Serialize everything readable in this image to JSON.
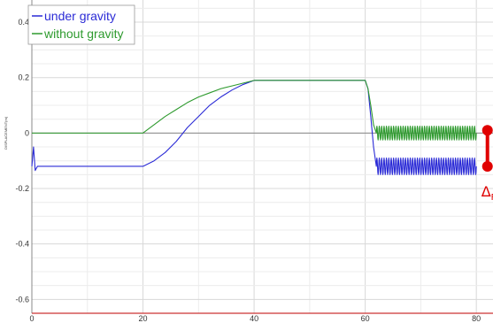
{
  "chart_data": {
    "type": "line",
    "ylabel": "DISPLACEMENT(m)",
    "xlim": [
      0,
      83
    ],
    "ylim": [
      -0.65,
      0.48
    ],
    "x_ticks": [
      0,
      20,
      40,
      60,
      80
    ],
    "y_ticks": [
      -0.6,
      -0.4,
      -0.2,
      0,
      0.2,
      0.4
    ],
    "grid": true,
    "legend_position": "top-left",
    "series": [
      {
        "name": "under gravity",
        "color": "#2b2bd6",
        "points": [
          [
            0,
            -0.12
          ],
          [
            0.3,
            -0.05
          ],
          [
            0.6,
            -0.135
          ],
          [
            1.0,
            -0.12
          ],
          [
            20,
            -0.12
          ],
          [
            22,
            -0.1
          ],
          [
            24,
            -0.07
          ],
          [
            26,
            -0.03
          ],
          [
            28,
            0.02
          ],
          [
            30,
            0.06
          ],
          [
            32,
            0.1
          ],
          [
            34,
            0.13
          ],
          [
            36,
            0.155
          ],
          [
            38,
            0.175
          ],
          [
            40,
            0.19
          ],
          [
            60,
            0.19
          ],
          [
            60.5,
            0.16
          ],
          [
            61,
            0.06
          ],
          [
            61.5,
            -0.05
          ],
          [
            62,
            -0.12
          ]
        ],
        "oscillation": {
          "x_start": 62,
          "x_end": 80,
          "center": -0.12,
          "amplitude": 0.03,
          "cycles": 42
        }
      },
      {
        "name": "without gravity",
        "color": "#2e9a2e",
        "points": [
          [
            0,
            0
          ],
          [
            20,
            0
          ],
          [
            22,
            0.03
          ],
          [
            24,
            0.06
          ],
          [
            26,
            0.085
          ],
          [
            28,
            0.11
          ],
          [
            30,
            0.13
          ],
          [
            32,
            0.145
          ],
          [
            34,
            0.16
          ],
          [
            36,
            0.17
          ],
          [
            38,
            0.18
          ],
          [
            40,
            0.19
          ],
          [
            60,
            0.19
          ],
          [
            60.5,
            0.16
          ],
          [
            61,
            0.1
          ],
          [
            61.5,
            0.03
          ],
          [
            62,
            0
          ]
        ],
        "oscillation": {
          "x_start": 62,
          "x_end": 80,
          "center": 0,
          "amplitude": 0.025,
          "cycles": 42
        }
      }
    ],
    "annotation": {
      "label": "Δ",
      "subscript": "F",
      "x": 82,
      "y_top": 0.01,
      "y_bottom": -0.12,
      "color": "#e00000"
    }
  }
}
